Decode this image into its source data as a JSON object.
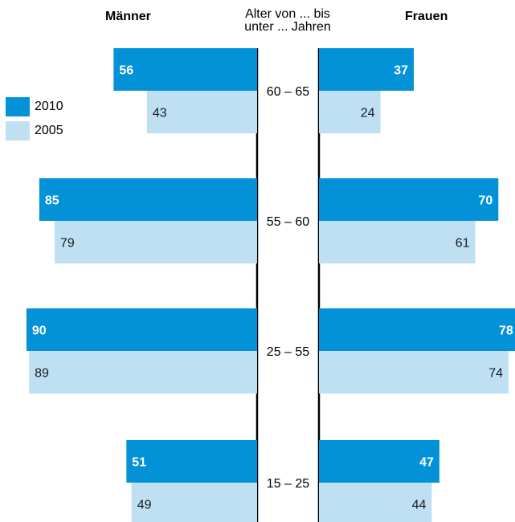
{
  "header": {
    "left": "Männer",
    "center_line1": "Alter von ... bis",
    "center_line2": "unter ... Jahren",
    "right": "Frauen"
  },
  "legend": [
    {
      "label": "2010",
      "color": "#0392d7"
    },
    {
      "label": "2005",
      "color": "#bfe0f3"
    }
  ],
  "chart_data": {
    "type": "bar",
    "orientation": "horizontal-butterfly",
    "categories": [
      "60 – 65",
      "55 – 60",
      "25 – 55",
      "15 – 25"
    ],
    "groups": [
      "Männer",
      "Frauen"
    ],
    "series": [
      {
        "name": "2010",
        "color": "#0392d7",
        "label_color": "#ffffff",
        "label_weight": "bold",
        "Männer": [
          56,
          85,
          90,
          51
        ],
        "Frauen": [
          37,
          70,
          78,
          47
        ]
      },
      {
        "name": "2005",
        "color": "#bfe0f3",
        "label_color": "#1a1a1a",
        "label_weight": "normal",
        "Männer": [
          43,
          79,
          89,
          49
        ],
        "Frauen": [
          24,
          61,
          74,
          44
        ]
      }
    ],
    "xlim": [
      0,
      100
    ]
  }
}
